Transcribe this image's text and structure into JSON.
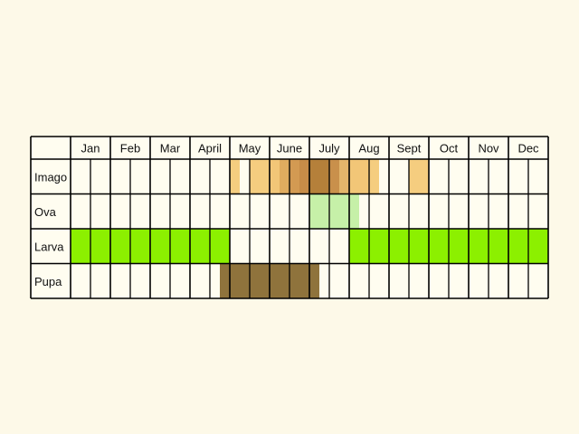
{
  "months": [
    "Jan",
    "Feb",
    "Mar",
    "Apr",
    "May",
    "June",
    "July",
    "Aug",
    "Sept",
    "Oct",
    "Nov",
    "Dec"
  ],
  "month_labels": [
    "Jan",
    "Feb",
    "Mar",
    "April",
    "May",
    "June",
    "July",
    "Aug",
    "Sept",
    "Oct",
    "Nov",
    "Dec"
  ],
  "stages": [
    {
      "name": "Imago",
      "bands": [
        {
          "start": 4.0,
          "end": 4.25,
          "color": "#f5cd7f"
        },
        {
          "start": 4.5,
          "end": 5.0,
          "color": "#f5cd7f"
        },
        {
          "start": 5.0,
          "end": 5.25,
          "color": "#f2c677"
        },
        {
          "start": 5.25,
          "end": 5.5,
          "color": "#e0ac5f"
        },
        {
          "start": 5.5,
          "end": 5.75,
          "color": "#d39a52"
        },
        {
          "start": 5.75,
          "end": 6.0,
          "color": "#c78c48"
        },
        {
          "start": 6.0,
          "end": 6.5,
          "color": "#b5803a"
        },
        {
          "start": 6.5,
          "end": 6.75,
          "color": "#c9904b"
        },
        {
          "start": 6.75,
          "end": 7.0,
          "color": "#e3b56b"
        },
        {
          "start": 7.0,
          "end": 7.5,
          "color": "#f2c677"
        },
        {
          "start": 7.5,
          "end": 7.75,
          "color": "#f5cd7f"
        },
        {
          "start": 8.5,
          "end": 9.0,
          "color": "#f5cd7f"
        }
      ]
    },
    {
      "name": "Ova",
      "bands": [
        {
          "start": 6.0,
          "end": 7.25,
          "color": "#c6f0a8"
        }
      ]
    },
    {
      "name": "Larva",
      "bands": [
        {
          "start": 0.0,
          "end": 4.0,
          "color": "#8cf000"
        },
        {
          "start": 7.0,
          "end": 12.0,
          "color": "#8cf000"
        }
      ]
    },
    {
      "name": "Pupa",
      "bands": [
        {
          "start": 3.75,
          "end": 6.25,
          "color": "#8f733c"
        }
      ]
    }
  ],
  "colors": {
    "background": "#fdf9e8",
    "grid": "#000000",
    "cell": "#fffdf0"
  }
}
